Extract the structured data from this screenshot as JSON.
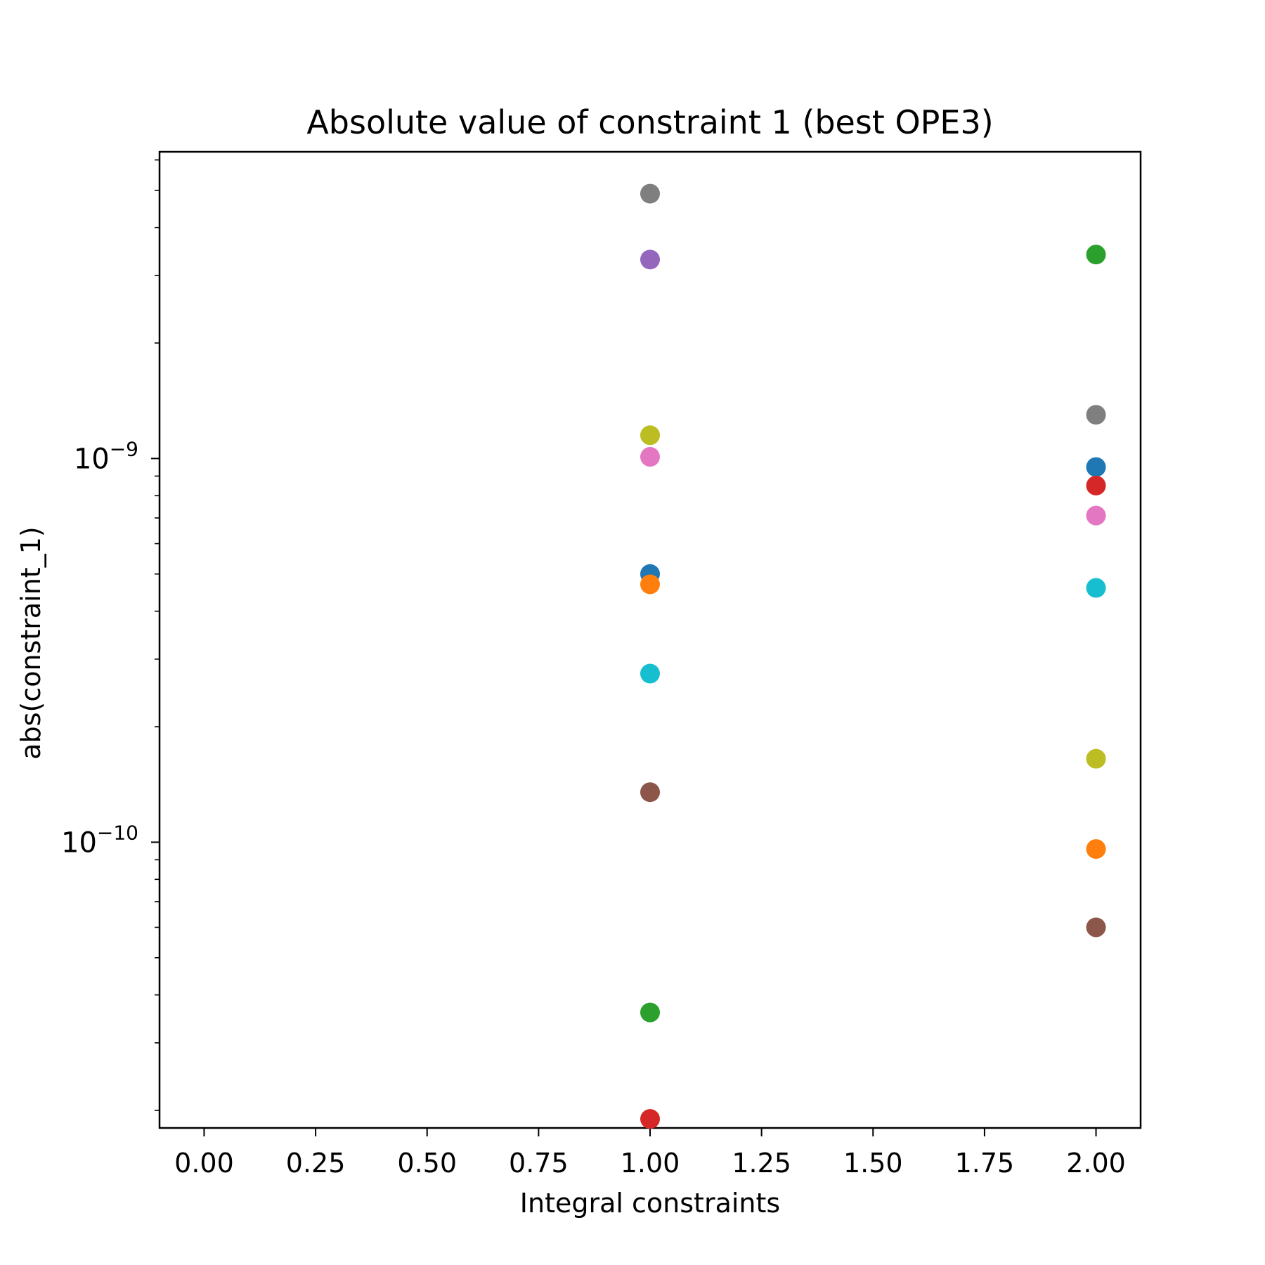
{
  "chart_data": {
    "type": "scatter",
    "title": "Absolute value of constraint 1 (best OPE3)",
    "xlabel": "Integral constraints",
    "ylabel": "abs(constraint_1)",
    "xlim": [
      -0.1,
      2.1
    ],
    "ylim": [
      1.8e-11,
      6.3e-09
    ],
    "yscale": "log",
    "grid": false,
    "legend": "none",
    "x_ticks": [
      0.0,
      0.25,
      0.5,
      0.75,
      1.0,
      1.25,
      1.5,
      1.75,
      2.0
    ],
    "x_tick_labels": [
      "0.00",
      "0.25",
      "0.50",
      "0.75",
      "1.00",
      "1.25",
      "1.50",
      "1.75",
      "2.00"
    ],
    "y_major_ticks": [
      {
        "value": 1e-10,
        "base": "10",
        "exponent": "−10"
      },
      {
        "value": 1e-09,
        "base": "10",
        "exponent": "−9"
      }
    ],
    "y_minor_ticks": [
      2e-11,
      3e-11,
      4e-11,
      5e-11,
      6e-11,
      7e-11,
      8e-11,
      9e-11,
      2e-10,
      3e-10,
      4e-10,
      5e-10,
      6e-10,
      7e-10,
      8e-10,
      9e-10,
      2e-09,
      3e-09,
      4e-09,
      5e-09,
      6e-09
    ],
    "series": [
      {
        "color": "#1f77b4",
        "points": [
          [
            1,
            5e-10
          ],
          [
            2,
            9.5e-10
          ]
        ]
      },
      {
        "color": "#ff7f0e",
        "points": [
          [
            1,
            4.7e-10
          ],
          [
            2,
            9.6e-11
          ]
        ]
      },
      {
        "color": "#2ca02c",
        "points": [
          [
            1,
            3.6e-11
          ],
          [
            2,
            3.4e-09
          ]
        ]
      },
      {
        "color": "#d62728",
        "points": [
          [
            1,
            1.9e-11
          ],
          [
            2,
            8.5e-10
          ]
        ]
      },
      {
        "color": "#9467bd",
        "points": [
          [
            1,
            3.3e-09
          ]
        ]
      },
      {
        "color": "#8c564b",
        "points": [
          [
            1,
            1.35e-10
          ],
          [
            2,
            6e-11
          ]
        ]
      },
      {
        "color": "#e377c2",
        "points": [
          [
            1,
            1.01e-09
          ],
          [
            2,
            7.1e-10
          ]
        ]
      },
      {
        "color": "#7f7f7f",
        "points": [
          [
            1,
            4.9e-09
          ],
          [
            2,
            1.3e-09
          ]
        ]
      },
      {
        "color": "#bcbd22",
        "points": [
          [
            1,
            1.15e-09
          ],
          [
            2,
            1.65e-10
          ]
        ]
      },
      {
        "color": "#17becf",
        "points": [
          [
            1,
            2.75e-10
          ],
          [
            2,
            4.6e-10
          ]
        ]
      }
    ]
  }
}
